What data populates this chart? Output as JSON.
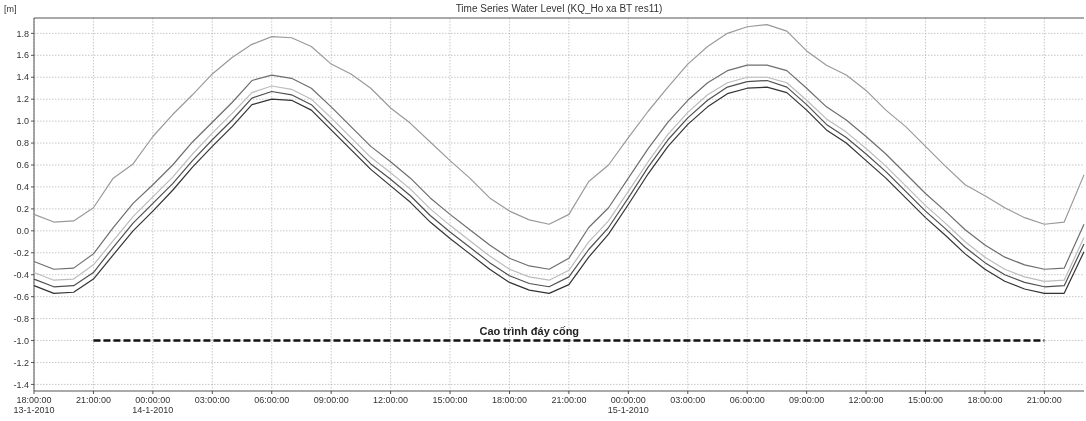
{
  "chart_data": {
    "type": "line",
    "title": "Time Series Water Level (KQ_Ho xa BT res11)",
    "ylabel": "[m]",
    "x": [
      "2010-01-13T18:00",
      "2010-01-13T19:00",
      "2010-01-13T20:00",
      "2010-01-13T21:00",
      "2010-01-13T22:00",
      "2010-01-13T23:00",
      "2010-01-14T00:00",
      "2010-01-14T01:00",
      "2010-01-14T02:00",
      "2010-01-14T03:00",
      "2010-01-14T04:00",
      "2010-01-14T05:00",
      "2010-01-14T06:00",
      "2010-01-14T07:00",
      "2010-01-14T08:00",
      "2010-01-14T09:00",
      "2010-01-14T10:00",
      "2010-01-14T11:00",
      "2010-01-14T12:00",
      "2010-01-14T13:00",
      "2010-01-14T14:00",
      "2010-01-14T15:00",
      "2010-01-14T16:00",
      "2010-01-14T17:00",
      "2010-01-14T18:00",
      "2010-01-14T19:00",
      "2010-01-14T20:00",
      "2010-01-14T21:00",
      "2010-01-14T22:00",
      "2010-01-14T23:00",
      "2010-01-15T00:00",
      "2010-01-15T01:00",
      "2010-01-15T02:00",
      "2010-01-15T03:00",
      "2010-01-15T04:00",
      "2010-01-15T05:00",
      "2010-01-15T06:00",
      "2010-01-15T07:00",
      "2010-01-15T08:00",
      "2010-01-15T09:00",
      "2010-01-15T10:00",
      "2010-01-15T11:00",
      "2010-01-15T12:00",
      "2010-01-15T13:00",
      "2010-01-15T14:00",
      "2010-01-15T15:00",
      "2010-01-15T16:00",
      "2010-01-15T17:00",
      "2010-01-15T18:00",
      "2010-01-15T19:00",
      "2010-01-15T20:00",
      "2010-01-15T21:00",
      "2010-01-15T22:00",
      "2010-01-15T23:00"
    ],
    "series": [
      {
        "color": "#9a9a9a",
        "values": [
          0.15,
          0.08,
          0.09,
          0.21,
          0.48,
          0.61,
          0.86,
          1.06,
          1.24,
          1.43,
          1.58,
          1.7,
          1.77,
          1.76,
          1.68,
          1.52,
          1.43,
          1.3,
          1.12,
          0.98,
          0.81,
          0.64,
          0.48,
          0.3,
          0.18,
          0.1,
          0.06,
          0.15,
          0.45,
          0.6,
          0.85,
          1.09,
          1.31,
          1.52,
          1.68,
          1.8,
          1.86,
          1.88,
          1.82,
          1.64,
          1.51,
          1.42,
          1.28,
          1.1,
          0.95,
          0.77,
          0.59,
          0.42,
          0.32,
          0.21,
          0.12,
          0.06,
          0.08,
          0.51
        ]
      },
      {
        "color": "#6e6e6e",
        "values": [
          -0.28,
          -0.35,
          -0.34,
          -0.21,
          0.03,
          0.25,
          0.42,
          0.6,
          0.81,
          0.99,
          1.17,
          1.37,
          1.42,
          1.39,
          1.3,
          1.13,
          0.95,
          0.77,
          0.63,
          0.48,
          0.3,
          0.15,
          0.01,
          -0.13,
          -0.25,
          -0.32,
          -0.35,
          -0.25,
          0.03,
          0.21,
          0.48,
          0.75,
          0.99,
          1.19,
          1.35,
          1.46,
          1.51,
          1.51,
          1.46,
          1.3,
          1.13,
          1.01,
          0.86,
          0.7,
          0.52,
          0.34,
          0.18,
          0.01,
          -0.13,
          -0.24,
          -0.31,
          -0.35,
          -0.34,
          0.06
        ]
      },
      {
        "color": "#bcbcbc",
        "values": [
          -0.38,
          -0.45,
          -0.44,
          -0.31,
          -0.09,
          0.13,
          0.31,
          0.49,
          0.7,
          0.89,
          1.07,
          1.26,
          1.32,
          1.29,
          1.2,
          1.03,
          0.85,
          0.67,
          0.53,
          0.38,
          0.2,
          0.05,
          -0.09,
          -0.23,
          -0.35,
          -0.42,
          -0.45,
          -0.36,
          -0.1,
          0.09,
          0.36,
          0.63,
          0.88,
          1.08,
          1.24,
          1.35,
          1.4,
          1.4,
          1.35,
          1.19,
          1.02,
          0.9,
          0.75,
          0.59,
          0.41,
          0.23,
          0.07,
          -0.1,
          -0.24,
          -0.35,
          -0.42,
          -0.46,
          -0.45,
          -0.06
        ]
      },
      {
        "color": "#505050",
        "values": [
          -0.44,
          -0.51,
          -0.5,
          -0.38,
          -0.15,
          0.07,
          0.25,
          0.43,
          0.64,
          0.83,
          1.01,
          1.21,
          1.27,
          1.24,
          1.15,
          0.97,
          0.79,
          0.61,
          0.47,
          0.32,
          0.14,
          -0.01,
          -0.15,
          -0.29,
          -0.41,
          -0.48,
          -0.51,
          -0.42,
          -0.17,
          0.03,
          0.3,
          0.58,
          0.83,
          1.03,
          1.19,
          1.31,
          1.36,
          1.37,
          1.31,
          1.15,
          0.97,
          0.85,
          0.7,
          0.54,
          0.36,
          0.18,
          0.02,
          -0.15,
          -0.29,
          -0.4,
          -0.47,
          -0.51,
          -0.5,
          -0.12
        ]
      },
      {
        "color": "#333333",
        "values": [
          -0.5,
          -0.57,
          -0.56,
          -0.44,
          -0.22,
          0.0,
          0.18,
          0.37,
          0.58,
          0.77,
          0.95,
          1.15,
          1.2,
          1.19,
          1.1,
          0.92,
          0.74,
          0.56,
          0.41,
          0.26,
          0.08,
          -0.07,
          -0.21,
          -0.35,
          -0.47,
          -0.54,
          -0.57,
          -0.49,
          -0.24,
          -0.03,
          0.24,
          0.52,
          0.77,
          0.97,
          1.13,
          1.25,
          1.3,
          1.31,
          1.26,
          1.1,
          0.92,
          0.8,
          0.64,
          0.48,
          0.3,
          0.12,
          -0.04,
          -0.21,
          -0.35,
          -0.46,
          -0.53,
          -0.57,
          -0.57,
          -0.19
        ]
      },
      {
        "color": "#111111",
        "line_style": "dashed",
        "x": [
          "2010-01-13T21:00",
          "2010-01-15T21:00"
        ],
        "values": [
          -1.0,
          -1.0
        ]
      }
    ],
    "annotations": [
      {
        "text": "Cao trình đáy cống",
        "x": "2010-01-14T19:00",
        "y": -1.0
      }
    ],
    "xlim": [
      "2010-01-13T18:00",
      "2010-01-15T23:00"
    ],
    "xticks": [
      {
        "value": "2010-01-13T18:00",
        "label": "18:00:00\n13-1-2010"
      },
      {
        "value": "2010-01-13T21:00",
        "label": "21:00:00"
      },
      {
        "value": "2010-01-14T00:00",
        "label": "00:00:00\n14-1-2010"
      },
      {
        "value": "2010-01-14T03:00",
        "label": "03:00:00"
      },
      {
        "value": "2010-01-14T06:00",
        "label": "06:00:00"
      },
      {
        "value": "2010-01-14T09:00",
        "label": "09:00:00"
      },
      {
        "value": "2010-01-14T12:00",
        "label": "12:00:00"
      },
      {
        "value": "2010-01-14T15:00",
        "label": "15:00:00"
      },
      {
        "value": "2010-01-14T18:00",
        "label": "18:00:00"
      },
      {
        "value": "2010-01-14T21:00",
        "label": "21:00:00"
      },
      {
        "value": "2010-01-15T00:00",
        "label": "00:00:00\n15-1-2010"
      },
      {
        "value": "2010-01-15T03:00",
        "label": "03:00:00"
      },
      {
        "value": "2010-01-15T06:00",
        "label": "06:00:00"
      },
      {
        "value": "2010-01-15T09:00",
        "label": "09:00:00"
      },
      {
        "value": "2010-01-15T12:00",
        "label": "12:00:00"
      },
      {
        "value": "2010-01-15T15:00",
        "label": "15:00:00"
      },
      {
        "value": "2010-01-15T18:00",
        "label": "18:00:00"
      },
      {
        "value": "2010-01-15T21:00",
        "label": "21:00:00"
      }
    ],
    "ylim": [
      -1.46,
      1.94
    ],
    "yticks": [
      -1.4,
      -1.2,
      {
        "value": -1,
        "label": "-1.0"
      },
      -0.8,
      -0.6,
      -0.4,
      -0.2,
      {
        "value": 0,
        "label": "0.0"
      },
      0.2,
      0.4,
      0.6,
      0.8,
      {
        "value": 1,
        "label": "1.0"
      },
      1.2,
      1.4,
      1.6,
      1.8
    ],
    "grid": true,
    "line_style": "solid"
  }
}
